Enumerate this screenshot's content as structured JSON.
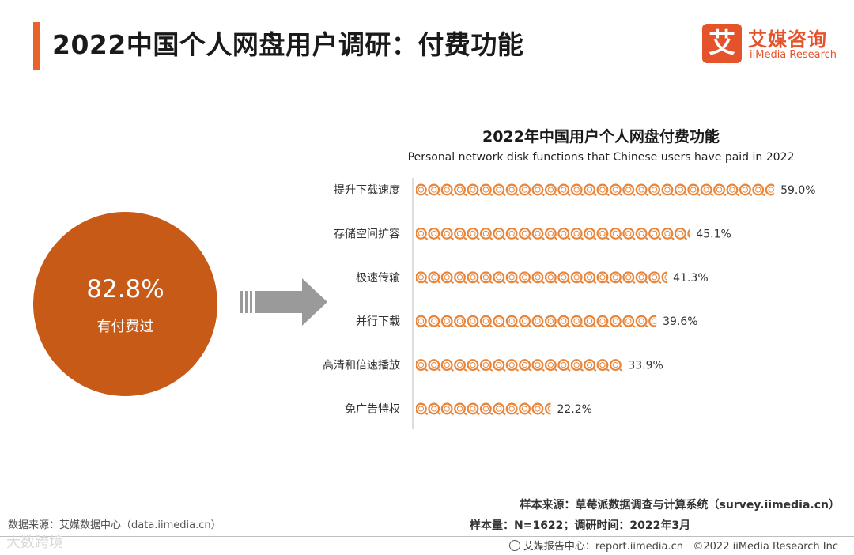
{
  "header": {
    "title": "2022中国个人网盘用户调研：付费功能",
    "logo_mark": "艾",
    "logo_cn": "艾媒咨询",
    "logo_en": "iiMedia Research"
  },
  "summary": {
    "value": "82.8%",
    "label": "有付费过",
    "color": "#c75a16"
  },
  "chart_data": {
    "type": "bar",
    "title": "2022年中国用户个人网盘付费功能",
    "subtitle": "Personal network disk functions that Chinese users have paid in 2022",
    "categories": [
      "提升下载速度",
      "存储空间扩容",
      "极速传输",
      "并行下载",
      "高清和倍速播放",
      "免广告特权"
    ],
    "values": [
      59.0,
      45.1,
      41.3,
      39.6,
      33.9,
      22.2
    ],
    "value_labels": [
      "59.0%",
      "45.1%",
      "41.3%",
      "39.6%",
      "33.9%",
      "22.2%"
    ],
    "unit": "%",
    "orientation": "horizontal",
    "mark_style": "pictogram-coins",
    "bar_color": "#e8853b",
    "grid": false,
    "legend": "none"
  },
  "footer": {
    "source_left": "数据来源：艾媒数据中心（data.iimedia.cn）",
    "sample_source": "样本来源：草莓派数据调查与计算系统（survey.iimedia.cn）",
    "sample_size": "样本量：N=1622；调研时间：2022年3月",
    "report_center": "艾媒报告中心：report.iimedia.cn",
    "copyright": "©2022 iiMedia Research Inc",
    "watermark": "大数跨境"
  }
}
